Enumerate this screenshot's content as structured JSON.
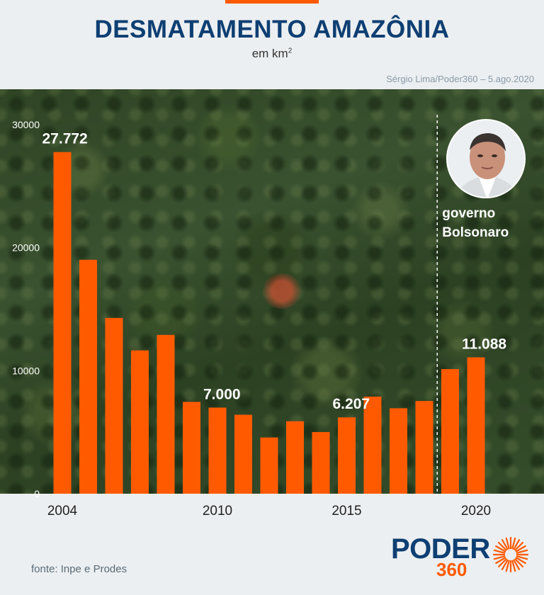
{
  "header": {
    "title": "DESMATAMENTO AMAZÔNIA",
    "subtitle_main": "em km",
    "subtitle_sup": "2",
    "credit": "Sérgio Lima/Poder360 – 5.ago.2020"
  },
  "chart_data": {
    "type": "bar",
    "title": "DESMATAMENTO AMAZÔNIA",
    "subtitle": "em km2",
    "ylim": [
      0,
      30000
    ],
    "y_ticks": [
      0,
      10000,
      20000,
      30000
    ],
    "x": [
      2004,
      2005,
      2006,
      2007,
      2008,
      2009,
      2010,
      2011,
      2012,
      2013,
      2014,
      2015,
      2016,
      2017,
      2018,
      2019,
      2020
    ],
    "x_tick_labels": [
      "2004",
      "2010",
      "2015",
      "2020"
    ],
    "x_tick_values": [
      2004,
      2010,
      2015,
      2020
    ],
    "values": [
      27772,
      19014,
      14286,
      11651,
      12911,
      7464,
      7000,
      6418,
      4571,
      5891,
      5012,
      6207,
      7893,
      6947,
      7536,
      10129,
      11088
    ],
    "data_labels": [
      {
        "x": 2004,
        "text": "27.772"
      },
      {
        "x": 2010,
        "text": "7.000"
      },
      {
        "x": 2015,
        "text": "6.207"
      },
      {
        "x": 2020,
        "text": "11.088"
      }
    ],
    "bar_color": "#ff5a00",
    "grid": false,
    "annotation": {
      "after_x": 2018,
      "line1": "governo",
      "line2": "Bolsonaro",
      "style": "dashed-vertical-line"
    }
  },
  "footer": {
    "source": "fonte: Inpe e Prodes",
    "logo_word": "PODER",
    "logo_number": "360"
  },
  "colors": {
    "title": "#0e3f73",
    "accent": "#ff5a00",
    "axis_labels": "#ffffff",
    "x_labels": "#222222"
  }
}
